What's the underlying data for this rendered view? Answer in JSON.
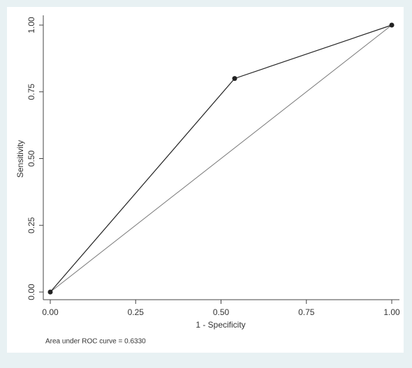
{
  "chart_data": {
    "type": "line",
    "x_label": "1 - Specificity",
    "y_label": "Sensitivity",
    "annotation": "Area under ROC curve = 0.6330",
    "x": [
      0,
      0.54,
      1
    ],
    "values": [
      0,
      0.8,
      1
    ],
    "color": "#222222",
    "reference_line": {
      "x": [
        0,
        1
      ],
      "y": [
        0,
        1
      ],
      "color": "#777777"
    },
    "xlim": [
      0,
      1
    ],
    "ylim": [
      0,
      1
    ],
    "xticks": [
      {
        "value": 0,
        "label": "0.00"
      },
      {
        "value": 0.25,
        "label": "0.25"
      },
      {
        "value": 0.5,
        "label": "0.50"
      },
      {
        "value": 0.75,
        "label": "0.75"
      },
      {
        "value": 1,
        "label": "1.00"
      }
    ],
    "yticks": [
      {
        "value": 0,
        "label": "0.00"
      },
      {
        "value": 0.25,
        "label": "0.25"
      },
      {
        "value": 0.5,
        "label": "0.50"
      },
      {
        "value": 0.75,
        "label": "0.75"
      },
      {
        "value": 1,
        "label": "1.00"
      }
    ],
    "grid": false
  }
}
